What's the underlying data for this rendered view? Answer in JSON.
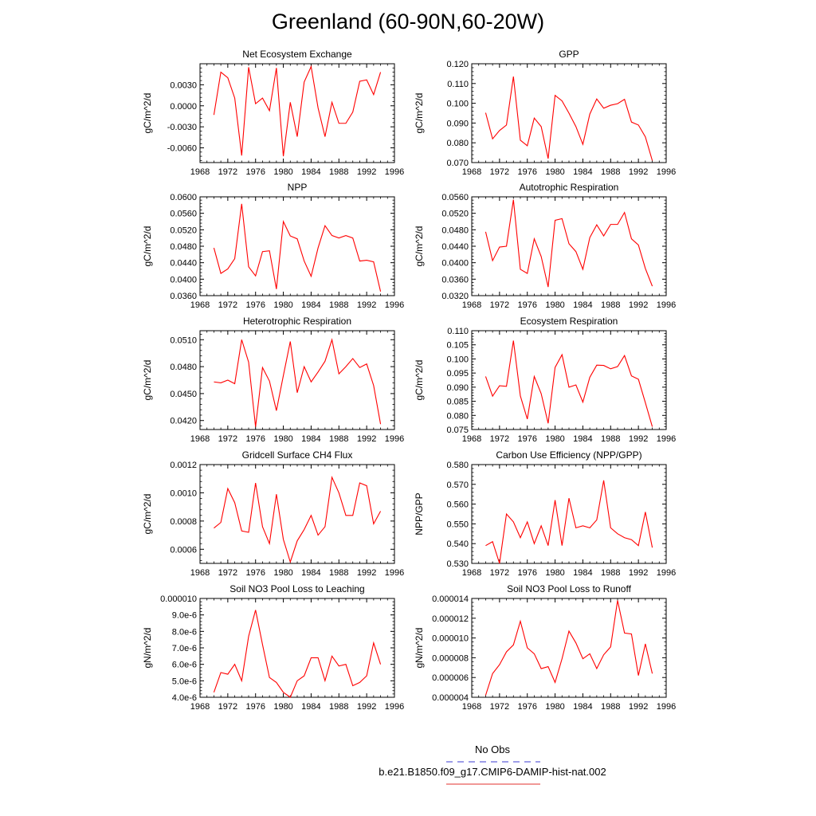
{
  "title": "Greenland (60-90N,60-20W)",
  "legend": [
    {
      "label": "No Obs",
      "color": "#3b3bd0",
      "dash": true
    },
    {
      "label": "b.e21.B1850.f09_g17.CMIP6-DAMIP-hist-nat.002",
      "color": "#e0302e",
      "dash": false
    }
  ],
  "line_color": "#ff0000",
  "chart_data": [
    {
      "type": "line",
      "title": "Net Ecosystem Exchange",
      "ylabel": "gC/m^2/d",
      "xlim": [
        1968,
        1996
      ],
      "xticks": [
        1968,
        1972,
        1976,
        1980,
        1984,
        1988,
        1992,
        1996
      ],
      "ylim": [
        -0.0081,
        0.006
      ],
      "yticks": [
        -0.006,
        -0.003,
        0.0,
        0.003
      ],
      "ytick_labels": [
        "-0.0060",
        "-0.0030",
        "0.0000",
        "0.0030"
      ],
      "x": [
        1970,
        1971,
        1972,
        1973,
        1974,
        1975,
        1976,
        1977,
        1978,
        1979,
        1980,
        1981,
        1982,
        1983,
        1984,
        1985,
        1986,
        1987,
        1988,
        1989,
        1990,
        1991,
        1992,
        1993,
        1994
      ],
      "values": [
        -0.0013,
        0.0048,
        0.004,
        0.0011,
        -0.0071,
        0.0055,
        0.0003,
        0.0011,
        -0.0007,
        0.0054,
        -0.0072,
        0.0005,
        -0.0044,
        0.0034,
        0.0056,
        -0.0003,
        -0.0044,
        0.0005,
        -0.0025,
        -0.0025,
        -0.0009,
        0.0035,
        0.0037,
        0.0016,
        0.0048
      ]
    },
    {
      "type": "line",
      "title": "GPP",
      "ylabel": "gC/m^2/d",
      "xlim": [
        1968,
        1996
      ],
      "xticks": [
        1968,
        1972,
        1976,
        1980,
        1984,
        1988,
        1992,
        1996
      ],
      "ylim": [
        0.07,
        0.12
      ],
      "yticks": [
        0.07,
        0.08,
        0.09,
        0.1,
        0.11,
        0.12
      ],
      "ytick_labels": [
        "0.070",
        "0.080",
        "0.090",
        "0.100",
        "0.110",
        "0.120"
      ],
      "x": [
        1970,
        1971,
        1972,
        1973,
        1974,
        1975,
        1976,
        1977,
        1978,
        1979,
        1980,
        1981,
        1982,
        1983,
        1984,
        1985,
        1986,
        1987,
        1988,
        1989,
        1990,
        1991,
        1992,
        1993,
        1994
      ],
      "values": [
        0.0952,
        0.082,
        0.0862,
        0.089,
        0.1135,
        0.0813,
        0.0785,
        0.0925,
        0.0882,
        0.072,
        0.104,
        0.1012,
        0.095,
        0.0882,
        0.0792,
        0.0945,
        0.1022,
        0.0975,
        0.099,
        0.0998,
        0.102,
        0.0905,
        0.089,
        0.083,
        0.071
      ]
    },
    {
      "type": "line",
      "title": "NPP",
      "ylabel": "gC/m^2/d",
      "xlim": [
        1968,
        1996
      ],
      "xticks": [
        1968,
        1972,
        1976,
        1980,
        1984,
        1988,
        1992,
        1996
      ],
      "ylim": [
        0.036,
        0.06
      ],
      "yticks": [
        0.036,
        0.04,
        0.044,
        0.048,
        0.052,
        0.056,
        0.06
      ],
      "ytick_labels": [
        "0.0360",
        "0.0400",
        "0.0440",
        "0.0480",
        "0.0520",
        "0.0560",
        "0.0600"
      ],
      "x": [
        1970,
        1971,
        1972,
        1973,
        1974,
        1975,
        1976,
        1977,
        1978,
        1979,
        1980,
        1981,
        1982,
        1983,
        1984,
        1985,
        1986,
        1987,
        1988,
        1989,
        1990,
        1991,
        1992,
        1993,
        1994
      ],
      "values": [
        0.0476,
        0.0414,
        0.0425,
        0.045,
        0.0583,
        0.043,
        0.0408,
        0.0467,
        0.0469,
        0.0376,
        0.054,
        0.0505,
        0.0498,
        0.0444,
        0.0407,
        0.0476,
        0.053,
        0.0506,
        0.05,
        0.0506,
        0.05,
        0.0444,
        0.0446,
        0.0442,
        0.037
      ]
    },
    {
      "type": "line",
      "title": "Autotrophic Respiration",
      "ylabel": "gC/m^2/d",
      "xlim": [
        1968,
        1996
      ],
      "xticks": [
        1968,
        1972,
        1976,
        1980,
        1984,
        1988,
        1992,
        1996
      ],
      "ylim": [
        0.032,
        0.056
      ],
      "yticks": [
        0.032,
        0.036,
        0.04,
        0.044,
        0.048,
        0.052,
        0.056
      ],
      "ytick_labels": [
        "0.0320",
        "0.0360",
        "0.0400",
        "0.0440",
        "0.0480",
        "0.0520",
        "0.0560"
      ],
      "x": [
        1970,
        1971,
        1972,
        1973,
        1974,
        1975,
        1976,
        1977,
        1978,
        1979,
        1980,
        1981,
        1982,
        1983,
        1984,
        1985,
        1986,
        1987,
        1988,
        1989,
        1990,
        1991,
        1992,
        1993,
        1994
      ],
      "values": [
        0.0475,
        0.0405,
        0.0438,
        0.044,
        0.0553,
        0.0384,
        0.0374,
        0.0458,
        0.0415,
        0.0341,
        0.0503,
        0.0507,
        0.0446,
        0.0427,
        0.0384,
        0.0461,
        0.0492,
        0.0465,
        0.0493,
        0.0493,
        0.0522,
        0.0458,
        0.0443,
        0.0386,
        0.0343
      ]
    },
    {
      "type": "line",
      "title": "Heterotrophic Respiration",
      "ylabel": "gC/m^2/d",
      "xlim": [
        1968,
        1996
      ],
      "xticks": [
        1968,
        1972,
        1976,
        1980,
        1984,
        1988,
        1992,
        1996
      ],
      "ylim": [
        0.041,
        0.052
      ],
      "yticks": [
        0.042,
        0.045,
        0.048,
        0.051
      ],
      "ytick_labels": [
        "0.0420",
        "0.0450",
        "0.0480",
        "0.0510"
      ],
      "x": [
        1970,
        1971,
        1972,
        1973,
        1974,
        1975,
        1976,
        1977,
        1978,
        1979,
        1980,
        1981,
        1982,
        1983,
        1984,
        1985,
        1986,
        1987,
        1988,
        1989,
        1990,
        1991,
        1992,
        1993,
        1994
      ],
      "values": [
        0.0463,
        0.0462,
        0.0465,
        0.0461,
        0.051,
        0.0485,
        0.0413,
        0.0479,
        0.0464,
        0.0431,
        0.047,
        0.0508,
        0.0451,
        0.048,
        0.0463,
        0.0474,
        0.0486,
        0.051,
        0.0472,
        0.048,
        0.0489,
        0.0479,
        0.0483,
        0.0459,
        0.0416
      ]
    },
    {
      "type": "line",
      "title": "Ecosystem Respiration",
      "ylabel": "gC/m^2/d",
      "xlim": [
        1968,
        1996
      ],
      "xticks": [
        1968,
        1972,
        1976,
        1980,
        1984,
        1988,
        1992,
        1996
      ],
      "ylim": [
        0.075,
        0.11
      ],
      "yticks": [
        0.075,
        0.08,
        0.085,
        0.09,
        0.095,
        0.1,
        0.105,
        0.11
      ],
      "ytick_labels": [
        "0.075",
        "0.080",
        "0.085",
        "0.090",
        "0.095",
        "0.100",
        "0.105",
        "0.110"
      ],
      "x": [
        1970,
        1971,
        1972,
        1973,
        1974,
        1975,
        1976,
        1977,
        1978,
        1979,
        1980,
        1981,
        1982,
        1983,
        1984,
        1985,
        1986,
        1987,
        1988,
        1989,
        1990,
        1991,
        1992,
        1993,
        1994
      ],
      "values": [
        0.0938,
        0.0868,
        0.0905,
        0.0903,
        0.1065,
        0.0869,
        0.0787,
        0.0938,
        0.0877,
        0.0772,
        0.097,
        0.1015,
        0.09,
        0.0908,
        0.0847,
        0.0935,
        0.0978,
        0.0977,
        0.0965,
        0.0973,
        0.1012,
        0.094,
        0.0928,
        0.0845,
        0.076
      ]
    },
    {
      "type": "line",
      "title": "Gridcell Surface CH4 Flux",
      "ylabel": "gC/m^2/d",
      "xlim": [
        1968,
        1996
      ],
      "xticks": [
        1968,
        1972,
        1976,
        1980,
        1984,
        1988,
        1992,
        1996
      ],
      "ylim": [
        0.0005,
        0.0012
      ],
      "yticks": [
        0.0006,
        0.0008,
        0.001,
        0.0012
      ],
      "ytick_labels": [
        "0.0006",
        "0.0008",
        "0.0010",
        "0.0012"
      ],
      "x": [
        1970,
        1971,
        1972,
        1973,
        1974,
        1975,
        1976,
        1977,
        1978,
        1979,
        1980,
        1981,
        1982,
        1983,
        1984,
        1985,
        1986,
        1987,
        1988,
        1989,
        1990,
        1991,
        1992,
        1993,
        1994
      ],
      "values": [
        0.00075,
        0.00079,
        0.00103,
        0.00093,
        0.00073,
        0.00072,
        0.00107,
        0.00076,
        0.00064,
        0.00099,
        0.00067,
        0.00051,
        0.00066,
        0.00074,
        0.00084,
        0.0007,
        0.00076,
        0.00111,
        0.001,
        0.00084,
        0.00084,
        0.00107,
        0.00105,
        0.00078,
        0.00087
      ]
    },
    {
      "type": "line",
      "title": "Carbon Use Efficiency (NPP/GPP)",
      "ylabel": "NPP/GPP",
      "xlim": [
        1968,
        1996
      ],
      "xticks": [
        1968,
        1972,
        1976,
        1980,
        1984,
        1988,
        1992,
        1996
      ],
      "ylim": [
        0.53,
        0.58
      ],
      "yticks": [
        0.53,
        0.54,
        0.55,
        0.56,
        0.57,
        0.58
      ],
      "ytick_labels": [
        "0.530",
        "0.540",
        "0.550",
        "0.560",
        "0.570",
        "0.580"
      ],
      "x": [
        1970,
        1971,
        1972,
        1973,
        1974,
        1975,
        1976,
        1977,
        1978,
        1979,
        1980,
        1981,
        1982,
        1983,
        1984,
        1985,
        1986,
        1987,
        1988,
        1989,
        1990,
        1991,
        1992,
        1993,
        1994
      ],
      "values": [
        0.539,
        0.541,
        0.53,
        0.555,
        0.551,
        0.543,
        0.551,
        0.54,
        0.549,
        0.539,
        0.562,
        0.539,
        0.563,
        0.548,
        0.549,
        0.548,
        0.552,
        0.572,
        0.548,
        0.545,
        0.543,
        0.542,
        0.539,
        0.556,
        0.538
      ]
    },
    {
      "type": "line",
      "title": "Soil NO3 Pool Loss to Leaching",
      "ylabel": "gN/m^2/d",
      "xlim": [
        1968,
        1996
      ],
      "xticks": [
        1968,
        1972,
        1976,
        1980,
        1984,
        1988,
        1992,
        1996
      ],
      "ylim": [
        4e-06,
        1e-05
      ],
      "yticks": [
        4e-06,
        5e-06,
        6e-06,
        7e-06,
        8e-06,
        9e-06,
        1e-05
      ],
      "ytick_labels": [
        "4.0e-6",
        "5.0e-6",
        "6.0e-6",
        "7.0e-6",
        "8.0e-6",
        "9.0e-6",
        "0.000010"
      ],
      "x": [
        1970,
        1971,
        1972,
        1973,
        1974,
        1975,
        1976,
        1977,
        1978,
        1979,
        1980,
        1981,
        1982,
        1983,
        1984,
        1985,
        1986,
        1987,
        1988,
        1989,
        1990,
        1991,
        1992,
        1993,
        1994
      ],
      "values": [
        4.3e-06,
        5.5e-06,
        5.4e-06,
        6e-06,
        5e-06,
        7.7e-06,
        9.3e-06,
        7.2e-06,
        5.2e-06,
        4.9e-06,
        4.3e-06,
        4e-06,
        5e-06,
        5.3e-06,
        6.4e-06,
        6.4e-06,
        5e-06,
        6.5e-06,
        5.9e-06,
        6e-06,
        4.7e-06,
        4.9e-06,
        5.3e-06,
        7.3e-06,
        6e-06
      ]
    },
    {
      "type": "line",
      "title": "Soil NO3 Pool Loss to Runoff",
      "ylabel": "gN/m^2/d",
      "xlim": [
        1968,
        1996
      ],
      "xticks": [
        1968,
        1972,
        1976,
        1980,
        1984,
        1988,
        1992,
        1996
      ],
      "ylim": [
        4e-06,
        1.4e-05
      ],
      "yticks": [
        4e-06,
        6e-06,
        8e-06,
        1e-05,
        1.2e-05,
        1.4e-05
      ],
      "ytick_labels": [
        "0.000004",
        "0.000006",
        "0.000008",
        "0.000010",
        "0.000012",
        "0.000014"
      ],
      "x": [
        1970,
        1971,
        1972,
        1973,
        1974,
        1975,
        1976,
        1977,
        1978,
        1979,
        1980,
        1981,
        1982,
        1983,
        1984,
        1985,
        1986,
        1987,
        1988,
        1989,
        1990,
        1991,
        1992,
        1993,
        1994
      ],
      "values": [
        4.2e-06,
        6.4e-06,
        7.3e-06,
        8.6e-06,
        9.3e-06,
        1.17e-05,
        9e-06,
        8.4e-06,
        6.9e-06,
        7.1e-06,
        5.5e-06,
        7.9e-06,
        1.07e-05,
        9.5e-06,
        7.9e-06,
        8.4e-06,
        6.9e-06,
        8.3e-06,
        9.1e-06,
        1.38e-05,
        1.05e-05,
        1.04e-05,
        6.2e-06,
        9.4e-06,
        6.4e-06
      ]
    }
  ]
}
